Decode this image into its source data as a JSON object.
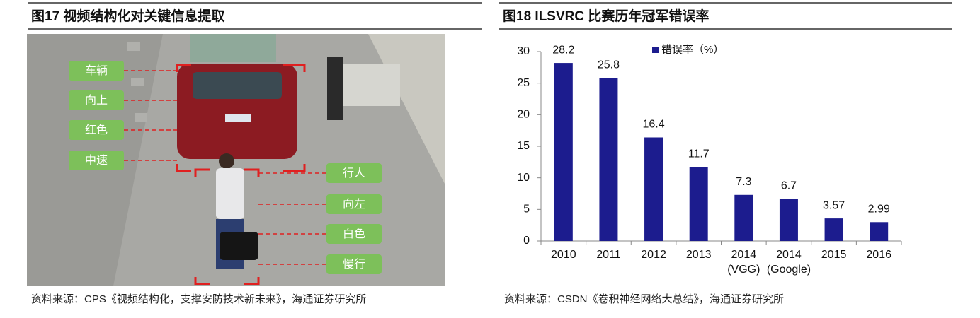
{
  "figure_left": {
    "title": "图17 视频结构化对关键信息提取",
    "labels": [
      "车辆",
      "向上",
      "红色",
      "中速",
      "行人",
      "向左",
      "白色",
      "慢行"
    ],
    "source": "资料来源：CPS《视频结构化，支撑安防技术新未来》，海通证券研究所"
  },
  "chart_data": {
    "type": "bar",
    "title": "图18 ILSVRC 比赛历年冠军错误率",
    "categories": [
      "2010",
      "2011",
      "2012",
      "2013",
      "2014\n(VGG)",
      "2014\n(Google)",
      "2015",
      "2016"
    ],
    "series": [
      {
        "name": "错误率（%）",
        "color": "#1c1c8e",
        "values": [
          28.2,
          25.8,
          16.4,
          11.7,
          7.3,
          6.7,
          3.57,
          2.99
        ]
      }
    ],
    "ylim": [
      0,
      30
    ],
    "yticks": [
      0,
      5,
      10,
      15,
      20,
      25,
      30
    ],
    "grid": false,
    "legend": "top",
    "source": "资料来源：CSDN《卷积神经网络大总结》，海通证券研究所"
  }
}
